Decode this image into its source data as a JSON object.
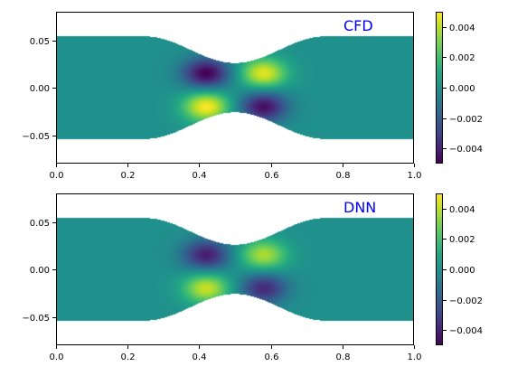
{
  "chart_data": [
    {
      "type": "heatmap",
      "panel_label": "CFD",
      "panel_label_color": "#0000ff",
      "xlim": [
        0.0,
        1.0
      ],
      "ylim": [
        -0.08,
        0.08
      ],
      "x_ticks": [
        0.0,
        0.2,
        0.4,
        0.6,
        0.8,
        1.0
      ],
      "x_tick_labels": [
        "0.0",
        "0.2",
        "0.4",
        "0.6",
        "0.8",
        "1.0"
      ],
      "y_ticks": [
        0.05,
        0.0,
        -0.05
      ],
      "y_tick_labels": [
        "0.05",
        "0.00",
        "−0.05"
      ],
      "channel": {
        "half_width": 0.054,
        "throat_half_width": 0.026,
        "throat_x": 0.5,
        "constriction_start": 0.25,
        "constriction_end": 0.75
      },
      "field_lobes": [
        {
          "x": 0.42,
          "y": 0.015,
          "value": -0.005
        },
        {
          "x": 0.58,
          "y": 0.015,
          "value": 0.0046
        },
        {
          "x": 0.42,
          "y": -0.02,
          "value": 0.005
        },
        {
          "x": 0.58,
          "y": -0.02,
          "value": -0.0046
        }
      ],
      "colorbar": {
        "colormap": "viridis",
        "range": [
          -0.005,
          0.005
        ],
        "ticks": [
          0.004,
          0.002,
          0.0,
          -0.002,
          -0.004
        ],
        "tick_labels": [
          "0.004",
          "0.002",
          "0.000",
          "−0.002",
          "−0.004"
        ]
      }
    },
    {
      "type": "heatmap",
      "panel_label": "DNN",
      "panel_label_color": "#0000ff",
      "xlim": [
        0.0,
        1.0
      ],
      "ylim": [
        -0.08,
        0.08
      ],
      "x_ticks": [
        0.0,
        0.2,
        0.4,
        0.6,
        0.8,
        1.0
      ],
      "x_tick_labels": [
        "0.0",
        "0.2",
        "0.4",
        "0.6",
        "0.8",
        "1.0"
      ],
      "y_ticks": [
        0.05,
        0.0,
        -0.05
      ],
      "y_tick_labels": [
        "0.05",
        "0.00",
        "−0.05"
      ],
      "channel": {
        "half_width": 0.054,
        "throat_half_width": 0.026,
        "throat_x": 0.5,
        "constriction_start": 0.25,
        "constriction_end": 0.75
      },
      "field_lobes": [
        {
          "x": 0.42,
          "y": 0.015,
          "value": -0.0042
        },
        {
          "x": 0.58,
          "y": 0.015,
          "value": 0.0038
        },
        {
          "x": 0.42,
          "y": -0.02,
          "value": 0.0042
        },
        {
          "x": 0.58,
          "y": -0.02,
          "value": -0.0038
        }
      ],
      "colorbar": {
        "colormap": "viridis",
        "range": [
          -0.005,
          0.005
        ],
        "ticks": [
          0.004,
          0.002,
          0.0,
          -0.002,
          -0.004
        ],
        "tick_labels": [
          "0.004",
          "0.002",
          "0.000",
          "−0.002",
          "−0.004"
        ]
      }
    }
  ]
}
